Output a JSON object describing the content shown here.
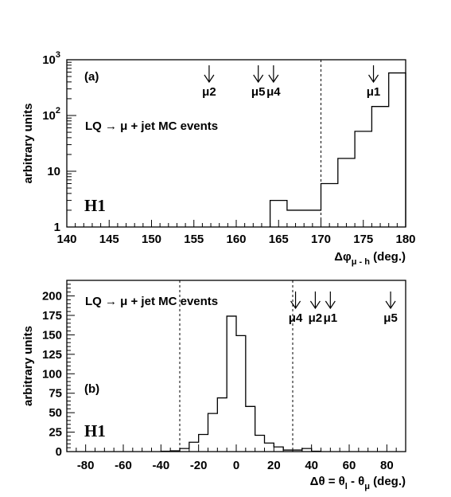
{
  "chart_data": [
    {
      "type": "histogram",
      "panel_label": "(a)",
      "experiment": "H1",
      "annotation": "LQ → μ + jet   MC events",
      "xlabel": "Δφ μ - h (deg.)",
      "xlabel_parts": {
        "main": "Δφ",
        "sub": "μ - h",
        "unit": "(deg.)"
      },
      "ylabel": "arbitrary units",
      "y_scale": "log",
      "xlim": [
        140,
        180
      ],
      "ylim": [
        1,
        1000
      ],
      "xticks": [
        140,
        145,
        150,
        155,
        160,
        165,
        170,
        175,
        180
      ],
      "yticks": [
        {
          "v": 1,
          "t": "1"
        },
        {
          "v": 10,
          "t": "10"
        },
        {
          "v": 100,
          "t": "10",
          "exp": "2"
        },
        {
          "v": 1000,
          "t": "10",
          "exp": "3"
        }
      ],
      "bin_edges": [
        164,
        166,
        168,
        170,
        172,
        174,
        176,
        178,
        180
      ],
      "values": [
        3,
        2,
        2,
        6,
        17,
        52,
        145,
        580
      ],
      "cut_line_x": 170,
      "markers": [
        {
          "label": "μ2",
          "x": 156.8
        },
        {
          "label": "μ5",
          "x": 162.6
        },
        {
          "label": "μ4",
          "x": 164.4
        },
        {
          "label": "μ1",
          "x": 176.2
        }
      ]
    },
    {
      "type": "histogram",
      "panel_label": "(b)",
      "experiment": "H1",
      "annotation": "LQ → μ + jet   MC events",
      "xlabel": "Δθ = θ l - θ μ (deg.)",
      "xlabel_parts": {
        "main": "Δθ = θ",
        "sub1": "l",
        "mid": " - θ",
        "sub2": "μ",
        "unit": "(deg.)"
      },
      "ylabel": "arbitrary units",
      "y_scale": "linear",
      "xlim": [
        -90,
        90
      ],
      "ylim": [
        0,
        220
      ],
      "xticks": [
        -80,
        -60,
        -40,
        -20,
        0,
        20,
        40,
        60,
        80
      ],
      "yticks": [
        0,
        25,
        50,
        75,
        100,
        125,
        150,
        175,
        200
      ],
      "bin_edges": [
        -40,
        -35,
        -30,
        -25,
        -20,
        -15,
        -10,
        -5,
        0,
        5,
        10,
        15,
        20,
        25,
        30,
        35,
        40,
        45
      ],
      "values": [
        0.5,
        1,
        4,
        12,
        22,
        49,
        69,
        174,
        149,
        58,
        21,
        11,
        6,
        2,
        2,
        4,
        0.5
      ],
      "cut_lines_x": [
        -30,
        30
      ],
      "markers": [
        {
          "label": "μ4",
          "x": 31.5
        },
        {
          "label": "μ2",
          "x": 42
        },
        {
          "label": "μ1",
          "x": 50
        },
        {
          "label": "μ5",
          "x": 82
        }
      ]
    }
  ]
}
